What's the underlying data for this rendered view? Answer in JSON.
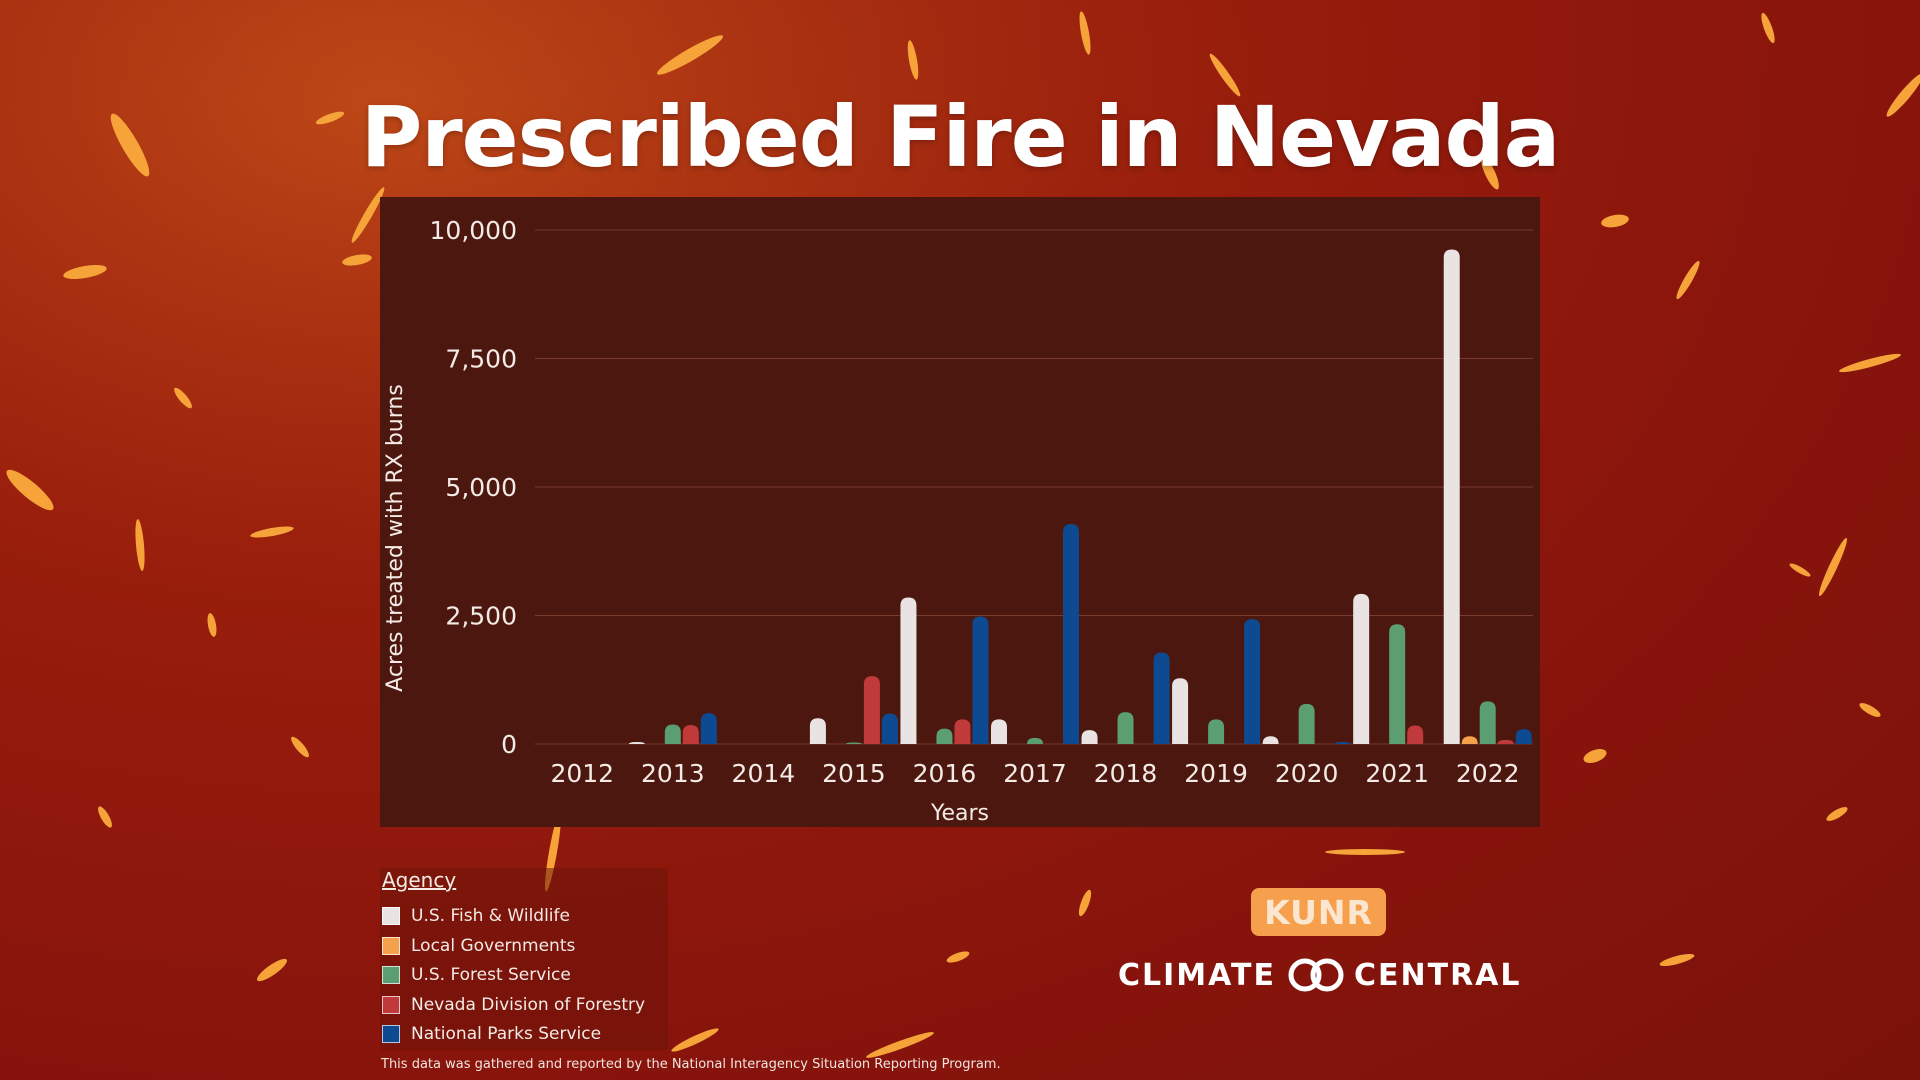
{
  "title": "Prescribed Fire in Nevada",
  "chart_data": {
    "type": "bar",
    "categories": [
      "2012",
      "2013",
      "2014",
      "2015",
      "2016",
      "2017",
      "2018",
      "2019",
      "2020",
      "2021",
      "2022"
    ],
    "ylabel": "Acres treated with RX burns",
    "xlabel": "Years",
    "ylim": [
      0,
      10000
    ],
    "yticks": [
      0,
      2500,
      5000,
      7500,
      10000
    ],
    "ytick_labels": [
      "0",
      "2,500",
      "5,000",
      "7,500",
      "10,000"
    ],
    "grid": true,
    "series": [
      {
        "name": "U.S. Fish & Wildlife",
        "color": "#e9e4e3",
        "values": [
          0,
          40,
          0,
          500,
          2850,
          480,
          270,
          1280,
          150,
          2920,
          9620
        ]
      },
      {
        "name": "Local Governments",
        "color": "#f5a04a",
        "values": [
          0,
          0,
          0,
          0,
          0,
          0,
          0,
          0,
          0,
          0,
          150
        ]
      },
      {
        "name": "U.S. Forest Service",
        "color": "#5a9e72",
        "values": [
          0,
          380,
          0,
          30,
          300,
          120,
          620,
          480,
          780,
          2330,
          830
        ]
      },
      {
        "name": "Nevada Division of Forestry",
        "color": "#c0393b",
        "values": [
          0,
          370,
          0,
          1320,
          480,
          0,
          0,
          0,
          0,
          360,
          80
        ]
      },
      {
        "name": "National Parks Service",
        "color": "#0e4a92",
        "values": [
          0,
          600,
          0,
          590,
          2480,
          4280,
          1780,
          2430,
          40,
          0,
          290
        ]
      }
    ]
  },
  "legend": {
    "title": "Agency"
  },
  "footnote": "This data was gathered and reported by the National Interagency Situation Reporting Program.",
  "logos": {
    "kunr": "KUNR",
    "climate_central_left": "CLIMATE",
    "climate_central_right": "CENTRAL"
  }
}
